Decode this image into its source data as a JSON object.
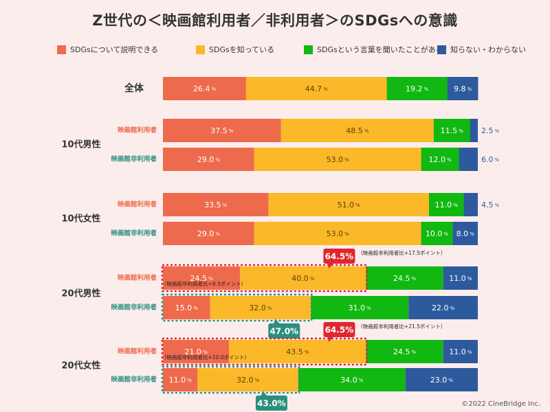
{
  "title": "Z世代の＜映画館利用者／非利用者＞のSDGsへの意識",
  "copyright": "©2022 CineBridge Inc.",
  "chart_data": {
    "type": "bar",
    "orientation": "horizontal",
    "stacked": "percent",
    "legend_placement": "top",
    "colors": [
      "#ee6a4c",
      "#fbb829",
      "#11b811",
      "#2d5a9c"
    ],
    "series_names": [
      "SDGsについて説明できる",
      "SDGsを知っている",
      "SDGsという言葉を聞いたことがある",
      "知らない・わからない"
    ],
    "unit": "%",
    "groups": [
      {
        "label": "全体",
        "rows": [
          {
            "label": "",
            "values": [
              26.4,
              44.7,
              19.2,
              9.8
            ]
          }
        ]
      },
      {
        "label": "10代男性",
        "rows": [
          {
            "label": "映画館利用者",
            "values": [
              37.5,
              48.5,
              11.5,
              2.5
            ]
          },
          {
            "label": "映画館非利用者",
            "values": [
              29.0,
              53.0,
              12.0,
              6.0
            ]
          }
        ]
      },
      {
        "label": "10代女性",
        "rows": [
          {
            "label": "映画館利用者",
            "values": [
              33.5,
              51.0,
              11.0,
              4.5
            ]
          },
          {
            "label": "映画館非利用者",
            "values": [
              29.0,
              53.0,
              10.0,
              8.0
            ]
          }
        ]
      },
      {
        "label": "20代男性",
        "rows": [
          {
            "label": "映画館利用者",
            "values": [
              24.5,
              40.0,
              24.5,
              11.0
            ]
          },
          {
            "label": "映画館非利用者",
            "values": [
              15.0,
              32.0,
              31.0,
              22.0
            ]
          }
        ]
      },
      {
        "label": "20代女性",
        "rows": [
          {
            "label": "映画館利用者",
            "values": [
              21.0,
              43.5,
              24.5,
              11.0
            ]
          },
          {
            "label": "映画館非利用者",
            "values": [
              11.0,
              32.0,
              34.0,
              23.0
            ]
          }
        ]
      }
    ],
    "annotations": [
      {
        "group": 3,
        "row": 0,
        "total": "64.5%",
        "note": "（映画館非利用者比+17.5ポイント）",
        "sub_note": "（映画館非利用者比+9.5ポイント）"
      },
      {
        "group": 3,
        "row": 1,
        "total": "47.0%"
      },
      {
        "group": 4,
        "row": 0,
        "total": "64.5%",
        "note": "（映画館非利用者比+21.5ポイント）",
        "sub_note": "（映画館非利用者比+10.0ポイント）"
      },
      {
        "group": 4,
        "row": 1,
        "total": "43.0%"
      }
    ]
  }
}
